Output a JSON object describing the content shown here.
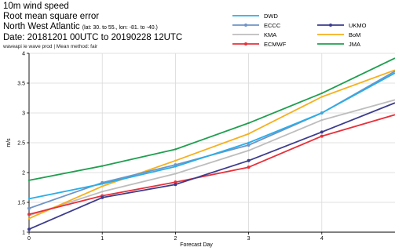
{
  "header": {
    "line1": "10m wind speed",
    "line2": "Root mean square error",
    "region": "North West Atlantic",
    "region_sub": "(lat: 30. to 55., lon: -81. to -40.)",
    "date": "Date: 20181201 00UTC to 20190228 12UTC",
    "note": "waveapi ie wave prod | Mean method: fair"
  },
  "chart_data": {
    "type": "line",
    "title": "",
    "xlabel": "Forecast Day",
    "ylabel": "m/s",
    "x": [
      0,
      1,
      2,
      3,
      4,
      5
    ],
    "xlim": [
      0,
      5
    ],
    "ylim": [
      1,
      4
    ],
    "xticks": [
      "0",
      "1",
      "2",
      "3",
      "4"
    ],
    "yticks": [
      "1",
      "1.5",
      "2",
      "2.5",
      "3",
      "3.5",
      "4"
    ],
    "grid": true,
    "legend_position": "top-right",
    "series": [
      {
        "name": "DWD",
        "color": "#29aee8",
        "marker": false,
        "values": [
          1.56,
          1.81,
          2.1,
          2.5,
          3.0,
          3.67
        ]
      },
      {
        "name": "ECCC",
        "color": "#6e95c7",
        "marker": true,
        "values": [
          1.4,
          1.83,
          2.13,
          2.46,
          3.0,
          3.7
        ]
      },
      {
        "name": "KMA",
        "color": "#bdbdbd",
        "marker": false,
        "values": [
          1.28,
          1.68,
          1.98,
          2.37,
          2.88,
          3.22
        ]
      },
      {
        "name": "ECMWF",
        "color": "#e8303a",
        "marker": true,
        "values": [
          1.3,
          1.61,
          1.84,
          2.09,
          2.61,
          2.97
        ]
      },
      {
        "name": "UKMO",
        "color": "#3c3c8e",
        "marker": true,
        "values": [
          1.05,
          1.58,
          1.8,
          2.2,
          2.68,
          3.17
        ]
      },
      {
        "name": "BoM",
        "color": "#f5b01d",
        "marker": false,
        "values": [
          1.23,
          1.77,
          2.2,
          2.65,
          3.27,
          3.72
        ]
      },
      {
        "name": "JMA",
        "color": "#1f9f4f",
        "marker": false,
        "values": [
          1.87,
          2.11,
          2.39,
          2.83,
          3.33,
          3.92
        ]
      }
    ]
  }
}
